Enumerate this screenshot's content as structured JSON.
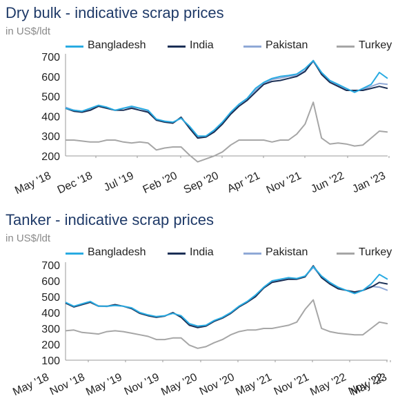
{
  "panels": [
    {
      "title": "Dry bulk - indicative scrap prices",
      "unit": "in  US$/ldt",
      "chart_data": {
        "type": "line",
        "ylim": [
          200,
          700
        ],
        "yticks": [
          200,
          300,
          400,
          500,
          600,
          700
        ],
        "x_start": "May '18",
        "x_end": "Jul '23",
        "x_ticks": [
          "May '18",
          "Dec '18",
          "Jul '19",
          "Feb '20",
          "Sep '20",
          "Apr '21",
          "Nov '21",
          "Jun '22",
          "Jan '23"
        ],
        "legend": "top",
        "grid": false,
        "series": [
          {
            "name": "Bangladesh",
            "color": "#29abe2",
            "values": [
              440,
              430,
              425,
              440,
              455,
              445,
              430,
              440,
              450,
              440,
              430,
              385,
              375,
              370,
              390,
              350,
              300,
              300,
              330,
              370,
              420,
              460,
              490,
              540,
              570,
              590,
              600,
              605,
              612,
              640,
              680,
              620,
              580,
              560,
              540,
              520,
              540,
              560,
              620,
              590
            ]
          },
          {
            "name": "India",
            "color": "#1b2f55",
            "values": [
              440,
              425,
              420,
              430,
              450,
              440,
              430,
              430,
              440,
              430,
              420,
              380,
              370,
              365,
              395,
              340,
              290,
              295,
              320,
              360,
              410,
              450,
              480,
              520,
              560,
              575,
              580,
              590,
              600,
              625,
              680,
              610,
              570,
              550,
              530,
              530,
              530,
              540,
              550,
              540
            ]
          },
          {
            "name": "Pakistan",
            "color": "#8fa8d6",
            "values": [
              445,
              430,
              425,
              435,
              450,
              440,
              430,
              440,
              445,
              440,
              425,
              380,
              372,
              368,
              390,
              345,
              295,
              298,
              325,
              365,
              415,
              455,
              485,
              530,
              565,
              585,
              592,
              600,
              605,
              630,
              675,
              615,
              575,
              555,
              535,
              525,
              535,
              550,
              565,
              560
            ]
          },
          {
            "name": "Turkey",
            "color": "#a6a6a6",
            "values": [
              280,
              280,
              275,
              270,
              270,
              280,
              280,
              270,
              265,
              270,
              265,
              230,
              240,
              245,
              245,
              205,
              170,
              185,
              200,
              220,
              255,
              280,
              280,
              280,
              280,
              270,
              280,
              280,
              310,
              360,
              470,
              290,
              260,
              265,
              260,
              250,
              255,
              290,
              325,
              320
            ]
          }
        ]
      }
    },
    {
      "title": "Tanker - indicative scrap prices",
      "unit": "in  US$/ldt",
      "chart_data": {
        "type": "line",
        "ylim": [
          100,
          700
        ],
        "yticks": [
          100,
          200,
          300,
          400,
          500,
          600,
          700
        ],
        "x_start": "May '18",
        "x_end": "May '23",
        "x_ticks": [
          "May '18",
          "Nov '18",
          "May '19",
          "Nov '19",
          "May '20",
          "Nov '20",
          "May '21",
          "Nov '21",
          "May '22",
          "Nov '22",
          "May '23"
        ],
        "legend": "top",
        "grid": false,
        "series": [
          {
            "name": "Bangladesh",
            "color": "#29abe2",
            "values": [
              465,
              440,
              455,
              470,
              440,
              440,
              445,
              440,
              430,
              400,
              385,
              375,
              380,
              395,
              380,
              330,
              315,
              320,
              350,
              370,
              400,
              440,
              470,
              510,
              560,
              600,
              610,
              620,
              615,
              630,
              690,
              630,
              590,
              560,
              540,
              520,
              540,
              580,
              640,
              610
            ]
          },
          {
            "name": "India",
            "color": "#1b2f55",
            "values": [
              460,
              435,
              450,
              465,
              440,
              440,
              450,
              440,
              425,
              395,
              380,
              370,
              378,
              400,
              370,
              320,
              305,
              315,
              345,
              365,
              395,
              435,
              465,
              500,
              555,
              590,
              600,
              610,
              610,
              625,
              695,
              620,
              580,
              550,
              540,
              530,
              540,
              560,
              590,
              580
            ]
          },
          {
            "name": "Pakistan",
            "color": "#8fa8d6",
            "values": [
              462,
              438,
              452,
              467,
              442,
              438,
              446,
              440,
              428,
              398,
              382,
              372,
              378,
              398,
              375,
              325,
              310,
              318,
              348,
              368,
              398,
              438,
              468,
              505,
              558,
              595,
              605,
              615,
              612,
              628,
              685,
              625,
              585,
              555,
              540,
              525,
              540,
              565,
              560,
              540
            ]
          },
          {
            "name": "Turkey",
            "color": "#a6a6a6",
            "values": [
              285,
              290,
              275,
              270,
              265,
              280,
              285,
              280,
              270,
              260,
              250,
              230,
              230,
              240,
              240,
              195,
              175,
              185,
              210,
              230,
              260,
              280,
              290,
              290,
              300,
              300,
              310,
              320,
              340,
              420,
              480,
              300,
              280,
              270,
              265,
              260,
              260,
              300,
              340,
              330
            ]
          }
        ]
      }
    }
  ]
}
